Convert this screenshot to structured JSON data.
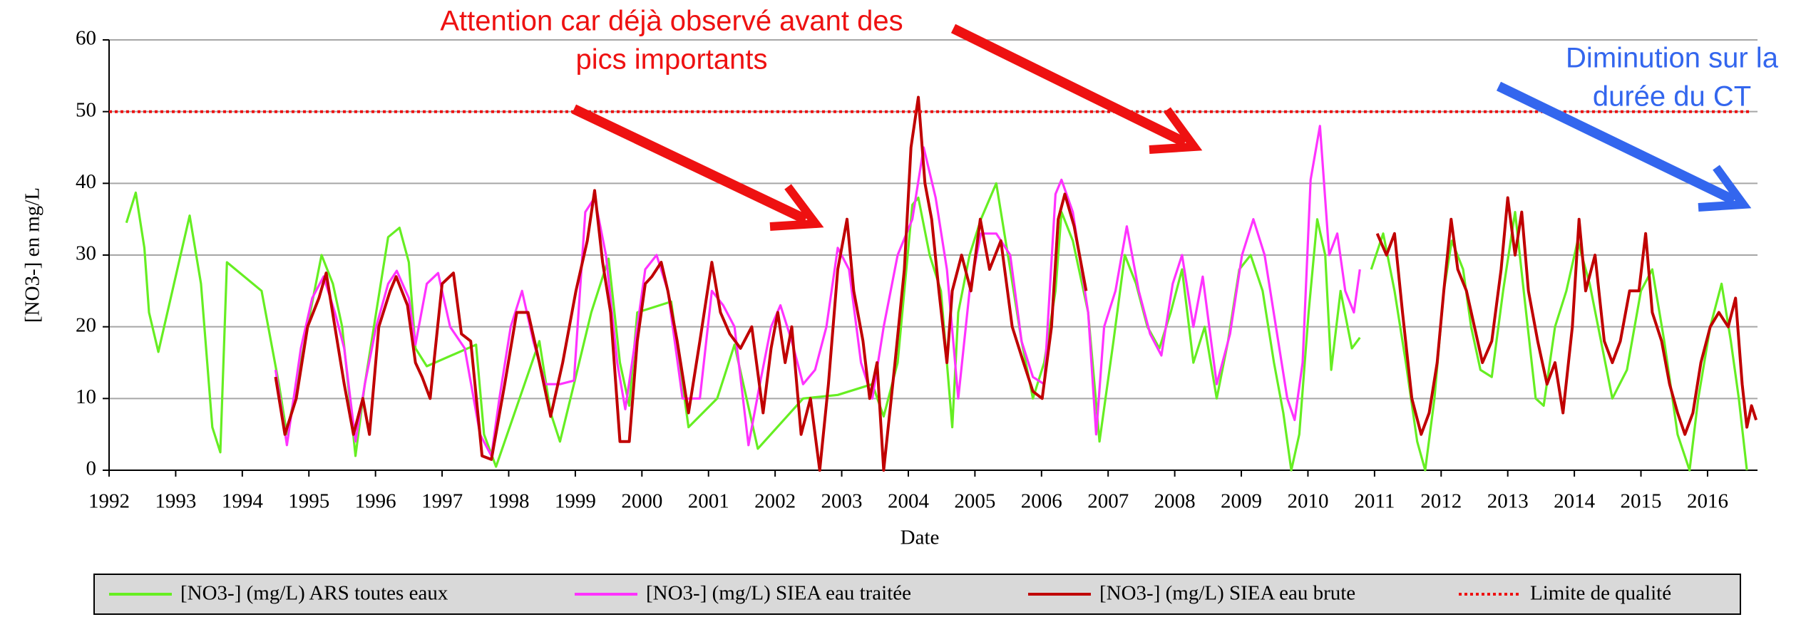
{
  "chart_data": {
    "type": "line",
    "xlabel": "Date",
    "ylabel": "[NO3-] en mg/L",
    "annotations": [
      {
        "lines": [
          "Attention car déjà observé avant des",
          "pics importants"
        ],
        "color": "#ee1111"
      },
      {
        "lines": [
          "Diminution sur la",
          "durée du CT"
        ],
        "color": "#3366ee"
      }
    ],
    "xlim": [
      1992,
      2016.75
    ],
    "ylim": [
      0,
      60
    ],
    "xticks": [
      1992,
      1993,
      1994,
      1995,
      1996,
      1997,
      1998,
      1999,
      2000,
      2001,
      2002,
      2003,
      2004,
      2005,
      2006,
      2007,
      2008,
      2009,
      2010,
      2011,
      2012,
      2013,
      2014,
      2015,
      2016
    ],
    "yticks": [
      0,
      10,
      20,
      30,
      40,
      50,
      60
    ],
    "grid": true,
    "series": [
      {
        "name": "[NO3-] (mg/L) ARS toutes eaux",
        "color": "#66ee22",
        "style": "solid",
        "x": [
          1992.26,
          1992.4,
          1992.53,
          1992.6,
          1992.74,
          1993.21,
          1993.38,
          1993.55,
          1993.67,
          1993.77,
          1994.29,
          1994.55,
          1994.67,
          1994.88,
          1995.02,
          1995.19,
          1995.36,
          1995.5,
          1995.7,
          1995.84,
          1996.01,
          1996.19,
          1996.36,
          1996.5,
          1996.6,
          1996.77,
          1997.51,
          1997.63,
          1997.81,
          1998.46,
          1998.63,
          1998.77,
          1998.98,
          1999.24,
          1999.5,
          1999.67,
          1999.81,
          1999.93,
          2000.44,
          2000.7,
          2001.13,
          2001.39,
          2001.74,
          2002.42,
          2002.94,
          2003.46,
          2003.63,
          2003.84,
          2004.06,
          2004.15,
          2004.32,
          2004.49,
          2004.66,
          2004.75,
          2004.92,
          2005.09,
          2005.32,
          2005.53,
          2005.7,
          2005.87,
          2006.04,
          2006.21,
          2006.3,
          2006.47,
          2006.7,
          2006.87,
          2007.08,
          2007.25,
          2007.42,
          2007.59,
          2007.77,
          2007.94,
          2008.11,
          2008.28,
          2008.45,
          2008.63,
          2008.8,
          2008.97,
          2009.14,
          2009.32,
          2009.49,
          2009.63,
          2009.75,
          2009.87,
          2010.01,
          2010.14,
          2010.26,
          2010.35,
          2010.49,
          2010.66,
          2010.78,
          2010.87,
          2010.95,
          2011.13,
          2011.3,
          2011.47,
          2011.64,
          2011.76,
          2011.9,
          2012.04,
          2012.16,
          2012.33,
          2012.45,
          2012.59,
          2012.76,
          2012.93,
          2013.11,
          2013.24,
          2013.42,
          2013.54,
          2013.71,
          2013.88,
          2014.05,
          2014.23,
          2014.4,
          2014.57,
          2014.79,
          2015.0,
          2015.17,
          2015.35,
          2015.55,
          2015.73,
          2015.86,
          2016.04,
          2016.21,
          2016.35,
          2016.47,
          2016.59
        ],
        "values": [
          34.5,
          38.7,
          31,
          22,
          16.5,
          35.5,
          26,
          6,
          2.5,
          29,
          25,
          12,
          5,
          15,
          22,
          30,
          26,
          20,
          2,
          12,
          22,
          32.5,
          33.8,
          29,
          17,
          14.5,
          17.5,
          5,
          0.5,
          18,
          8,
          4,
          12,
          22,
          29.5,
          15,
          9,
          22,
          23.5,
          6,
          10,
          17.5,
          3,
          10,
          10.5,
          12,
          7.5,
          15,
          37,
          38,
          30,
          25,
          6,
          22,
          30,
          35,
          40,
          28,
          18,
          10,
          15,
          25,
          36,
          32,
          22,
          4,
          18,
          30,
          26,
          20,
          17,
          22,
          28,
          15,
          20,
          10,
          18,
          28,
          30,
          25,
          15,
          8,
          0,
          5,
          22,
          35,
          30,
          14,
          25,
          17,
          18.5,
          null,
          28,
          33,
          25,
          15,
          4,
          0,
          10,
          25,
          32,
          28,
          20,
          14,
          13,
          25,
          36,
          25,
          10,
          9,
          20,
          25,
          32,
          26,
          18,
          10,
          14,
          25,
          28,
          18,
          5,
          0,
          10,
          20,
          26,
          18,
          10,
          0
        ]
      },
      {
        "name": "[NO3-] (mg/L) SIEA eau traitée",
        "color": "#ff33ff",
        "style": "solid",
        "x": [
          1994.5,
          1994.67,
          1994.88,
          1995.05,
          1995.22,
          1995.39,
          1995.53,
          1995.7,
          1995.84,
          1996.01,
          1996.19,
          1996.32,
          1996.5,
          1996.6,
          1996.77,
          1996.94,
          1997.12,
          1997.34,
          1997.57,
          1997.74,
          1997.86,
          1998.03,
          1998.2,
          1998.37,
          1998.55,
          1998.77,
          1998.98,
          1999.15,
          1999.29,
          1999.46,
          1999.63,
          1999.75,
          1999.93,
          2000.05,
          2000.22,
          2000.39,
          2000.61,
          2000.87,
          2001.05,
          2001.22,
          2001.39,
          2001.6,
          2001.77,
          2001.94,
          2002.08,
          2002.25,
          2002.42,
          2002.6,
          2002.77,
          2002.94,
          2003.11,
          2003.29,
          2003.46,
          2003.63,
          2003.84,
          2004.06,
          2004.23,
          2004.41,
          2004.58,
          2004.75,
          2004.92,
          2005.09,
          2005.32,
          2005.53,
          2005.7,
          2005.87,
          2006.04,
          2006.21,
          2006.3,
          2006.47,
          2006.7,
          2006.82,
          2006.94,
          2007.11,
          2007.28,
          2007.46,
          2007.63,
          2007.8,
          2007.97,
          2008.11,
          2008.28,
          2008.42,
          2008.63,
          2008.83,
          2009.01,
          2009.18,
          2009.35,
          2009.52,
          2009.69,
          2009.8,
          2009.92,
          2010.04,
          2010.18,
          2010.32,
          2010.44,
          2010.56,
          2010.69,
          2010.78
        ],
        "values": [
          14,
          3.5,
          17,
          24,
          27,
          22,
          17,
          4,
          12,
          20,
          26,
          27.8,
          24,
          17.5,
          26,
          27.5,
          20,
          17,
          5,
          2,
          10,
          20,
          25,
          18,
          12,
          12,
          12.5,
          36,
          38,
          30,
          15,
          8.5,
          20,
          28,
          30,
          25,
          10,
          10,
          25,
          23,
          20,
          3.5,
          12,
          20,
          23,
          18,
          12,
          14,
          20,
          31,
          28,
          15,
          10,
          20,
          30,
          35,
          45,
          38,
          28,
          10,
          25,
          33,
          33,
          30,
          18,
          13,
          12,
          38.5,
          40.5,
          36,
          22,
          5,
          20,
          25,
          34,
          25,
          19,
          16,
          26,
          30,
          20,
          27,
          12,
          19,
          30,
          35,
          30,
          20,
          10,
          7,
          15,
          40.5,
          48,
          30,
          33,
          25,
          22,
          28
        ]
      },
      {
        "name": "[NO3-] (mg/L) SIEA eau brute",
        "color": "#c00000",
        "style": "solid",
        "x": [
          1994.5,
          1994.64,
          1994.81,
          1994.98,
          1995.15,
          1995.26,
          1995.39,
          1995.53,
          1995.67,
          1995.81,
          1995.91,
          1996.05,
          1996.22,
          1996.31,
          1996.48,
          1996.6,
          1996.7,
          1996.82,
          1997.0,
          1997.17,
          1997.29,
          1997.43,
          1997.6,
          1997.74,
          1997.94,
          1998.12,
          1998.29,
          1998.46,
          1998.63,
          1998.81,
          1999.01,
          1999.18,
          1999.29,
          1999.41,
          1999.53,
          1999.67,
          1999.81,
          1999.93,
          2000.05,
          2000.15,
          2000.29,
          2000.39,
          2000.53,
          2000.7,
          2000.87,
          2001.05,
          2001.18,
          2001.32,
          2001.48,
          2001.65,
          2001.82,
          2001.94,
          2002.04,
          2002.15,
          2002.25,
          2002.39,
          2002.53,
          2002.67,
          2002.8,
          2002.94,
          2003.08,
          2003.18,
          2003.32,
          2003.42,
          2003.53,
          2003.63,
          2003.8,
          2003.94,
          2004.04,
          2004.15,
          2004.25,
          2004.35,
          2004.46,
          2004.58,
          2004.66,
          2004.8,
          2004.94,
          2005.08,
          2005.22,
          2005.39,
          2005.56,
          2005.73,
          2005.87,
          2006.01,
          2006.15,
          2006.25,
          2006.35,
          2006.49,
          2006.67,
          2008.0,
          2011.04,
          2011.18,
          2011.3,
          2011.42,
          2011.56,
          2011.7,
          2011.82,
          2011.94,
          2012.04,
          2012.15,
          2012.25,
          2012.38,
          2012.5,
          2012.62,
          2012.76,
          2012.9,
          2013.0,
          2013.11,
          2013.21,
          2013.31,
          2013.45,
          2013.59,
          2013.71,
          2013.83,
          2013.97,
          2014.07,
          2014.17,
          2014.31,
          2014.45,
          2014.57,
          2014.69,
          2014.83,
          2014.97,
          2015.07,
          2015.17,
          2015.31,
          2015.43,
          2015.55,
          2015.66,
          2015.78,
          2015.9,
          2016.04,
          2016.17,
          2016.31,
          2016.42,
          2016.52,
          2016.59,
          2016.66,
          2016.73
        ],
        "values": [
          13,
          5,
          10,
          20,
          24,
          27.5,
          20,
          12,
          5,
          10,
          5,
          20,
          25,
          27,
          23,
          15,
          13,
          10,
          26,
          27.5,
          19,
          18,
          2,
          1.5,
          12,
          22,
          22,
          15,
          7.5,
          15,
          25,
          32,
          39,
          29,
          22,
          4,
          4,
          18,
          26,
          27,
          29,
          25,
          18,
          8,
          18,
          29,
          22,
          19,
          17,
          20,
          8,
          17,
          22,
          15,
          20,
          5,
          10,
          0,
          12,
          28,
          35,
          25,
          18,
          10,
          15,
          0,
          15,
          28,
          45,
          52,
          40,
          35,
          25,
          15,
          25,
          30,
          25,
          35,
          28,
          32,
          20,
          15,
          11,
          10,
          20,
          35,
          38.5,
          34,
          25,
          null,
          33,
          30,
          33,
          22,
          10,
          5,
          8,
          15,
          25,
          35,
          28,
          25,
          20,
          15,
          18,
          28,
          38,
          30,
          36,
          25,
          18,
          12,
          15,
          8,
          20,
          35,
          25,
          30,
          18,
          15,
          18,
          25,
          25,
          33,
          22,
          18,
          12,
          8,
          5,
          8,
          15,
          20,
          22,
          20,
          24,
          12,
          6,
          9,
          7
        ]
      },
      {
        "name": "Limite de qualité",
        "color": "#ee1111",
        "style": "dotted",
        "x": [
          1992.0,
          2016.64
        ],
        "values": [
          50,
          50
        ]
      }
    ]
  }
}
